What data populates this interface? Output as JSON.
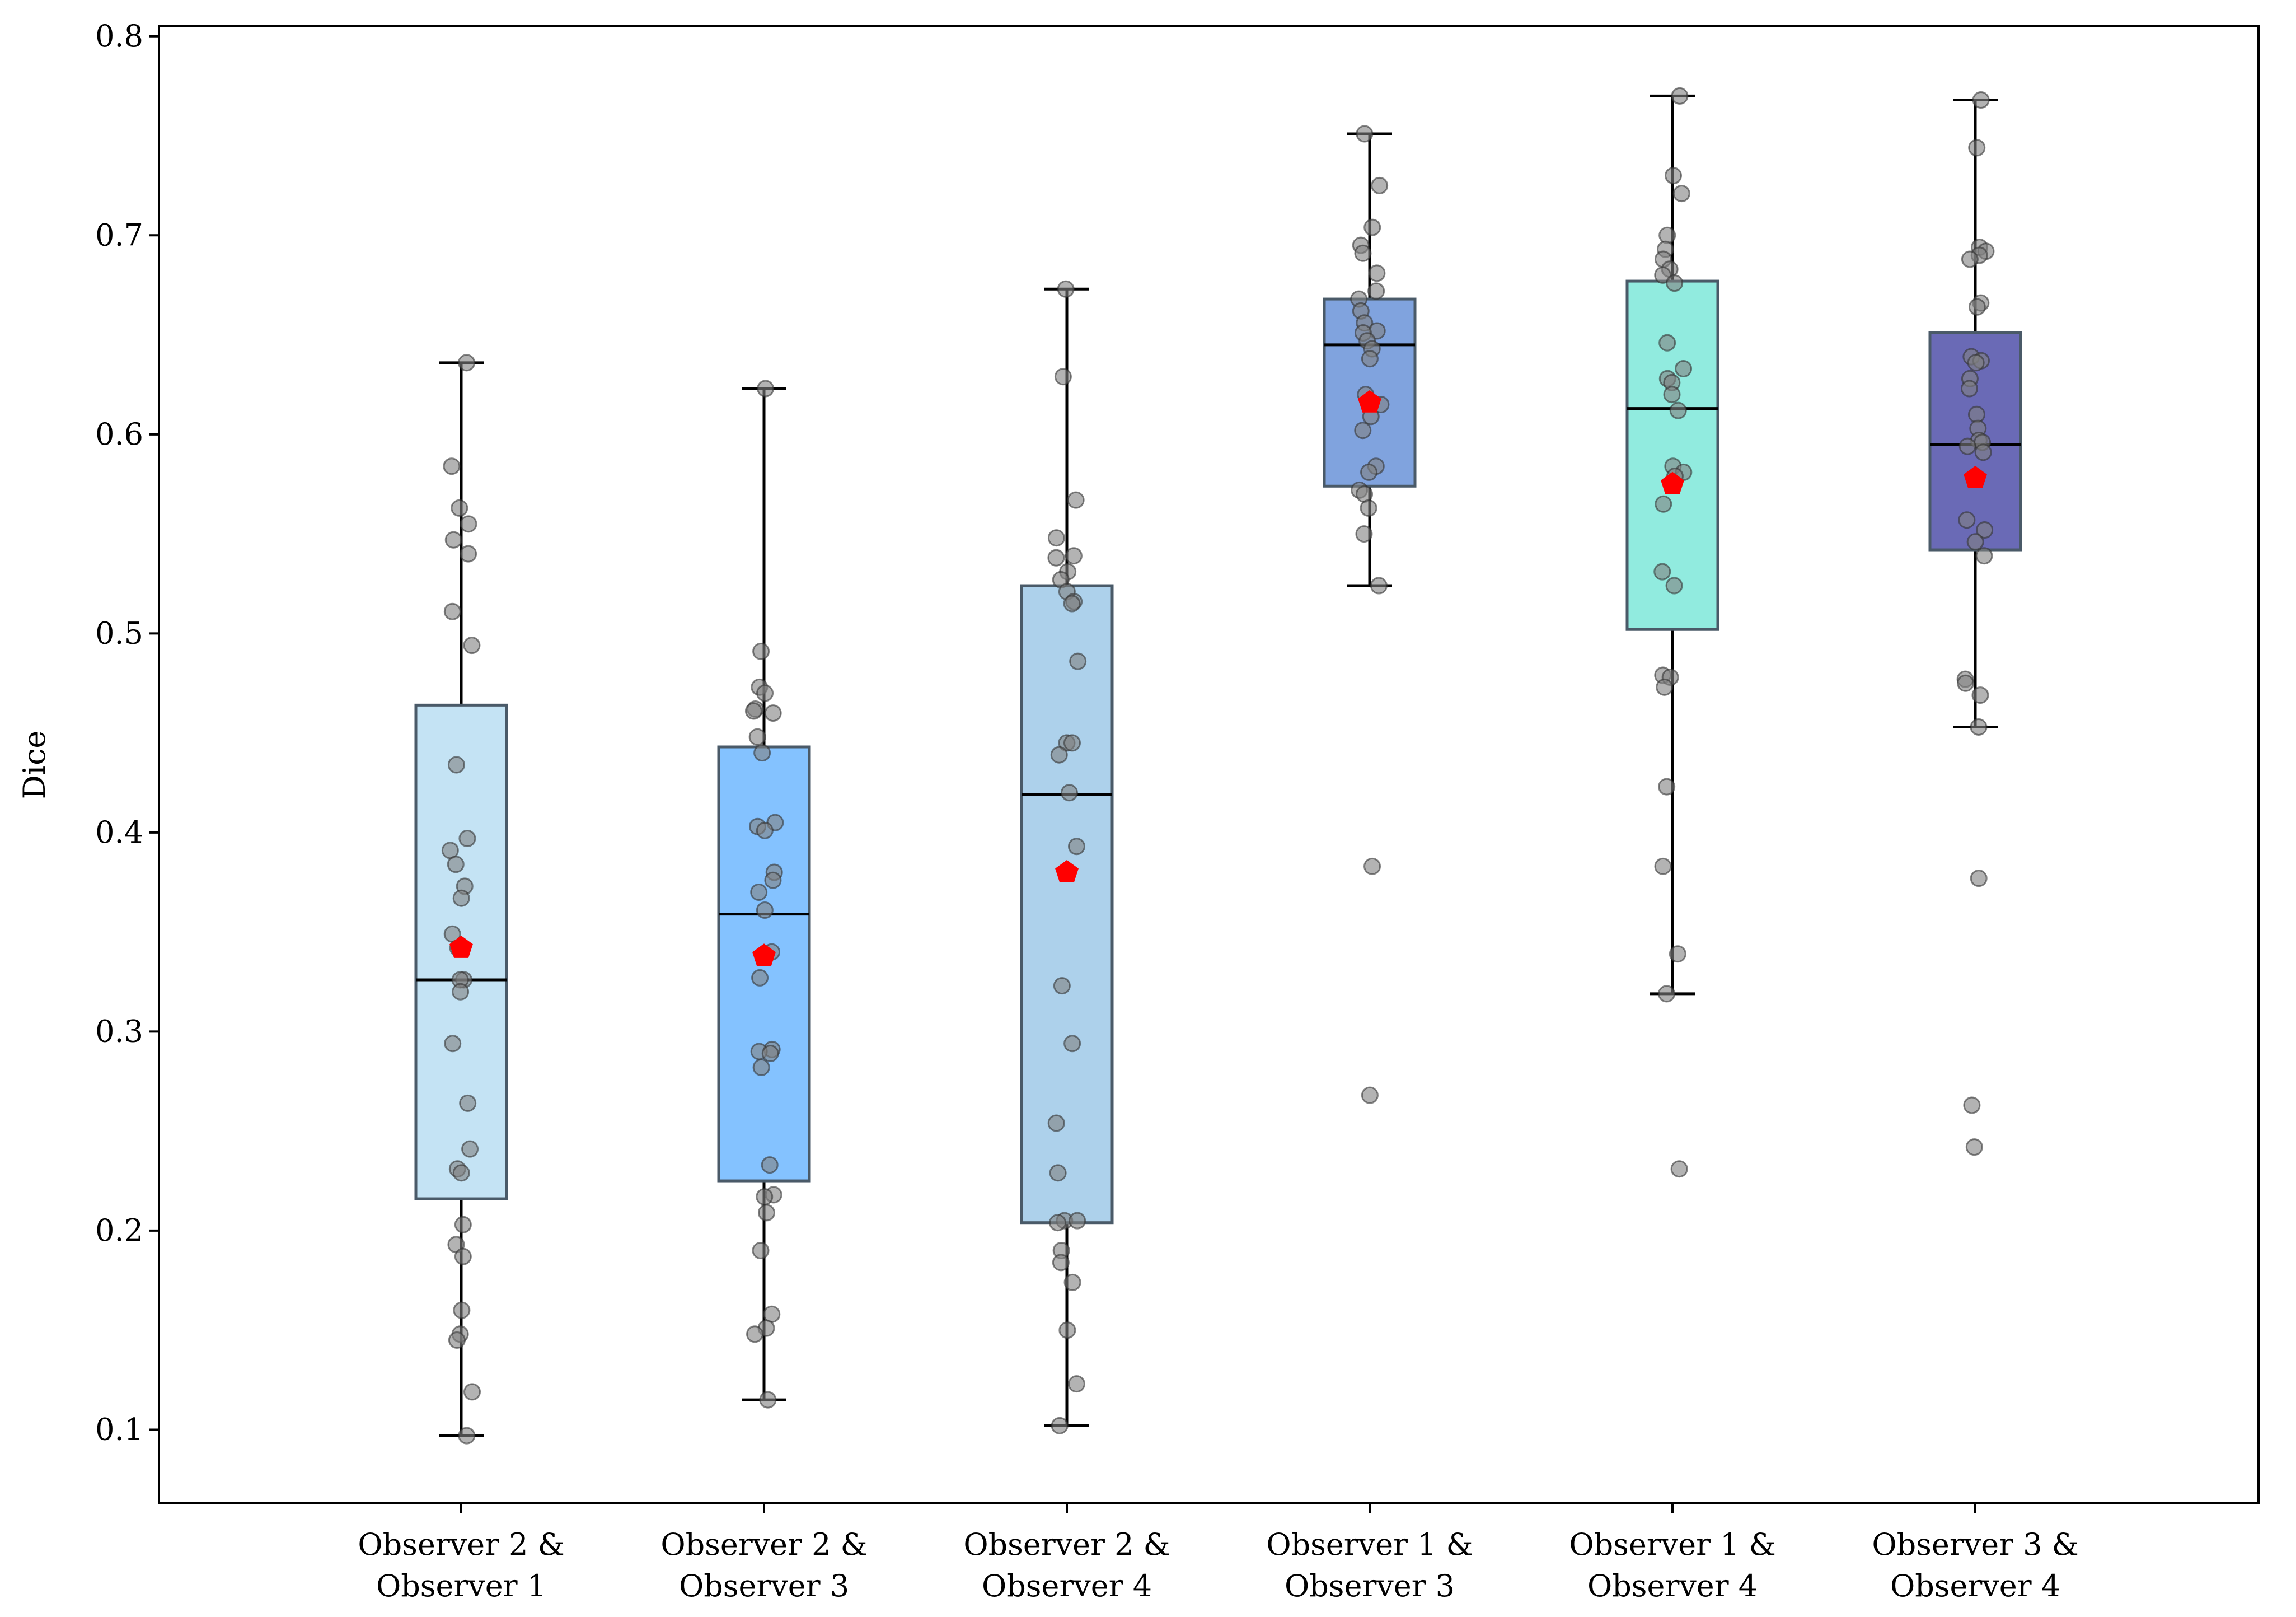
{
  "chart_data": {
    "type": "box",
    "title": "",
    "xlabel": "",
    "ylabel": "Dice",
    "ylim": [
      0.063,
      0.805
    ],
    "yticks": [
      "0.1",
      "0.2",
      "0.3",
      "0.4",
      "0.5",
      "0.6",
      "0.7",
      "0.8"
    ],
    "mean_marker": {
      "shape": "pentagon",
      "color": "#ff0000"
    },
    "point_color": "#808080",
    "categories": [
      {
        "label_lines": [
          "Observer 2 &",
          "Observer 1"
        ],
        "color": "#add8f0",
        "whisker_low": 0.097,
        "q1": 0.216,
        "median": 0.326,
        "q3": 0.464,
        "whisker_high": 0.636,
        "mean": 0.342,
        "points": [
          0.636,
          0.584,
          0.563,
          0.555,
          0.547,
          0.54,
          0.511,
          0.494,
          0.434,
          0.397,
          0.391,
          0.384,
          0.373,
          0.367,
          0.349,
          0.342,
          0.326,
          0.326,
          0.32,
          0.294,
          0.264,
          0.241,
          0.231,
          0.229,
          0.203,
          0.193,
          0.187,
          0.16,
          0.148,
          0.145,
          0.119,
          0.097
        ]
      },
      {
        "label_lines": [
          "Observer 2 &",
          "Observer 3"
        ],
        "color": "#55aaff",
        "whisker_low": 0.115,
        "q1": 0.225,
        "median": 0.359,
        "q3": 0.443,
        "whisker_high": 0.623,
        "mean": 0.338,
        "points": [
          0.623,
          0.491,
          0.473,
          0.47,
          0.462,
          0.461,
          0.46,
          0.448,
          0.44,
          0.405,
          0.403,
          0.401,
          0.38,
          0.376,
          0.37,
          0.361,
          0.34,
          0.327,
          0.291,
          0.29,
          0.289,
          0.282,
          0.233,
          0.218,
          0.217,
          0.209,
          0.19,
          0.158,
          0.151,
          0.148,
          0.115
        ]
      },
      {
        "label_lines": [
          "Observer 2 &",
          "Observer 4"
        ],
        "color": "#8ebfe3",
        "whisker_low": 0.102,
        "q1": 0.204,
        "median": 0.419,
        "q3": 0.524,
        "whisker_high": 0.673,
        "mean": 0.38,
        "points": [
          0.673,
          0.629,
          0.567,
          0.548,
          0.539,
          0.538,
          0.531,
          0.527,
          0.521,
          0.516,
          0.515,
          0.486,
          0.445,
          0.445,
          0.439,
          0.42,
          0.393,
          0.323,
          0.294,
          0.254,
          0.229,
          0.205,
          0.205,
          0.204,
          0.19,
          0.184,
          0.174,
          0.15,
          0.123,
          0.102
        ]
      },
      {
        "label_lines": [
          "Observer 1 &",
          "Observer 3"
        ],
        "color": "#4f7fd1",
        "whisker_low": 0.524,
        "q1": 0.574,
        "median": 0.645,
        "q3": 0.668,
        "whisker_high": 0.751,
        "mean": 0.616,
        "points": [
          0.751,
          0.725,
          0.704,
          0.695,
          0.691,
          0.681,
          0.672,
          0.668,
          0.662,
          0.656,
          0.652,
          0.651,
          0.647,
          0.643,
          0.638,
          0.62,
          0.615,
          0.609,
          0.602,
          0.584,
          0.581,
          0.572,
          0.57,
          0.563,
          0.55,
          0.524,
          0.383,
          0.268
        ]
      },
      {
        "label_lines": [
          "Observer 1 &",
          "Observer 4"
        ],
        "color": "#66e3d3",
        "whisker_low": 0.319,
        "q1": 0.502,
        "median": 0.613,
        "q3": 0.677,
        "whisker_high": 0.77,
        "mean": 0.575,
        "points": [
          0.77,
          0.73,
          0.721,
          0.7,
          0.693,
          0.688,
          0.683,
          0.68,
          0.676,
          0.646,
          0.633,
          0.628,
          0.626,
          0.62,
          0.612,
          0.584,
          0.581,
          0.579,
          0.565,
          0.531,
          0.524,
          0.479,
          0.478,
          0.473,
          0.423,
          0.383,
          0.339,
          0.319,
          0.231
        ]
      },
      {
        "label_lines": [
          "Observer 3 &",
          "Observer 4"
        ],
        "color": "#30309a",
        "whisker_low": 0.453,
        "q1": 0.542,
        "median": 0.595,
        "q3": 0.651,
        "whisker_high": 0.768,
        "mean": 0.578,
        "points": [
          0.768,
          0.744,
          0.694,
          0.692,
          0.69,
          0.688,
          0.666,
          0.664,
          0.639,
          0.637,
          0.636,
          0.628,
          0.623,
          0.61,
          0.603,
          0.597,
          0.596,
          0.594,
          0.591,
          0.557,
          0.552,
          0.546,
          0.539,
          0.477,
          0.475,
          0.469,
          0.453,
          0.377,
          0.263,
          0.242
        ]
      }
    ]
  }
}
